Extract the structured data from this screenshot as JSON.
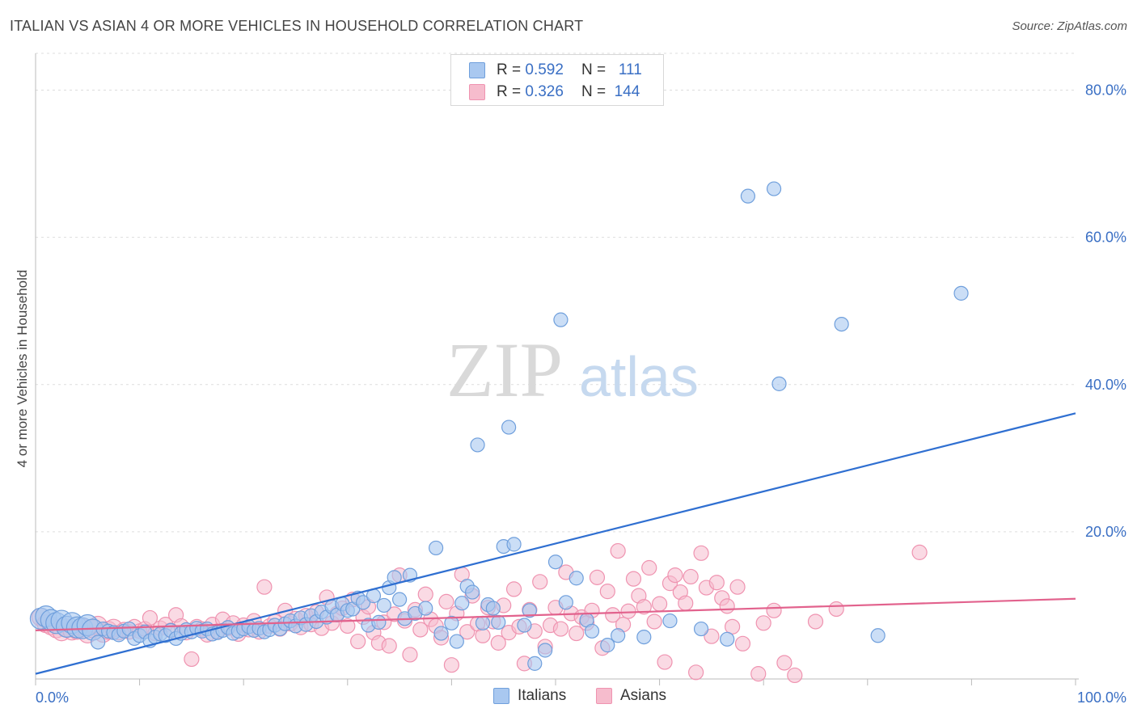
{
  "title": "ITALIAN VS ASIAN 4 OR MORE VEHICLES IN HOUSEHOLD CORRELATION CHART",
  "source": "Source: ZipAtlas.com",
  "watermark": {
    "zip": "ZIP",
    "atlas": "atlas"
  },
  "legend": {
    "italians": {
      "r_label": "R =",
      "r_value": "0.592",
      "n_label": "N =",
      "n_value": "111"
    },
    "asians": {
      "r_label": "R =",
      "r_value": "0.326",
      "n_label": "N =",
      "n_value": "144"
    }
  },
  "colors": {
    "italians_fill": "#a9c8f0",
    "italians_stroke": "#6f9fdc",
    "italians_line": "#2f6fd1",
    "asians_fill": "#f6bccd",
    "asians_stroke": "#ef93b0",
    "asians_line": "#e2628d",
    "tick_label": "#3a6fc4",
    "grid": "#dddddd"
  },
  "chart_data": {
    "type": "scatter",
    "title": "ITALIAN VS ASIAN 4 OR MORE VEHICLES IN HOUSEHOLD CORRELATION CHART",
    "xlabel": "",
    "ylabel": "4 or more Vehicles in Household",
    "xlim": [
      0,
      100
    ],
    "ylim": [
      0,
      85
    ],
    "x_tick_labels": [
      "0.0%",
      "100.0%"
    ],
    "y_ticks": [
      20,
      40,
      60,
      80
    ],
    "y_tick_labels": [
      "20.0%",
      "40.0%",
      "60.0%",
      "80.0%"
    ],
    "grid": true,
    "legend_position": "top-center",
    "series": [
      {
        "name": "Italians",
        "trend": {
          "x": [
            0,
            100
          ],
          "y": [
            0.7,
            36.1
          ]
        },
        "points": [
          [
            0.5,
            8.2
          ],
          [
            1,
            8.5
          ],
          [
            1.5,
            8
          ],
          [
            2,
            7.6
          ],
          [
            2.5,
            7.9
          ],
          [
            3,
            7.1
          ],
          [
            3.5,
            7.6
          ],
          [
            4,
            7
          ],
          [
            4.5,
            6.9
          ],
          [
            5,
            7.3
          ],
          [
            5.5,
            6.7
          ],
          [
            6,
            5
          ],
          [
            6.5,
            6.8
          ],
          [
            7,
            6.5
          ],
          [
            7.5,
            6.3
          ],
          [
            8,
            6
          ],
          [
            8.5,
            6.5
          ],
          [
            9,
            6.8
          ],
          [
            9.5,
            5.5
          ],
          [
            10,
            5.9
          ],
          [
            10.5,
            6.4
          ],
          [
            11,
            5.2
          ],
          [
            11.5,
            5.7
          ],
          [
            12,
            6.1
          ],
          [
            12.5,
            5.9
          ],
          [
            13,
            6.6
          ],
          [
            13.5,
            5.5
          ],
          [
            14,
            6.2
          ],
          [
            14.5,
            6.7
          ],
          [
            15,
            6.4
          ],
          [
            15.5,
            6.9
          ],
          [
            16,
            6.5
          ],
          [
            16.5,
            6.8
          ],
          [
            17,
            6.1
          ],
          [
            17.5,
            6.3
          ],
          [
            18,
            6.6
          ],
          [
            18.5,
            7
          ],
          [
            19,
            6.2
          ],
          [
            19.5,
            6.5
          ],
          [
            20,
            6.8
          ],
          [
            20.5,
            7.1
          ],
          [
            21,
            6.6
          ],
          [
            21.5,
            6.9
          ],
          [
            22,
            6.4
          ],
          [
            22.5,
            6.7
          ],
          [
            23,
            7.3
          ],
          [
            23.5,
            6.8
          ],
          [
            24,
            7.5
          ],
          [
            24.5,
            7.9
          ],
          [
            25,
            7.2
          ],
          [
            25.5,
            8.3
          ],
          [
            26,
            7.4
          ],
          [
            26.5,
            8.6
          ],
          [
            27,
            7.8
          ],
          [
            27.5,
            9.1
          ],
          [
            28,
            8.4
          ],
          [
            28.5,
            9.8
          ],
          [
            29,
            8.7
          ],
          [
            29.5,
            10.2
          ],
          [
            30,
            9.3
          ],
          [
            30.5,
            9.5
          ],
          [
            31,
            11
          ],
          [
            31.5,
            10.4
          ],
          [
            32,
            7.3
          ],
          [
            32.5,
            11.3
          ],
          [
            33,
            7.7
          ],
          [
            33.5,
            10
          ],
          [
            34,
            12.4
          ],
          [
            34.5,
            13.8
          ],
          [
            35,
            10.8
          ],
          [
            35.5,
            8.2
          ],
          [
            36,
            14.1
          ],
          [
            36.5,
            8.9
          ],
          [
            37.5,
            9.6
          ],
          [
            38.5,
            17.8
          ],
          [
            39,
            6.2
          ],
          [
            40,
            7.6
          ],
          [
            40.5,
            5.1
          ],
          [
            41,
            10.3
          ],
          [
            42.5,
            31.8
          ],
          [
            41.5,
            12.6
          ],
          [
            42,
            11.8
          ],
          [
            43,
            7.6
          ],
          [
            43.5,
            10.1
          ],
          [
            44,
            9.6
          ],
          [
            44.5,
            7.7
          ],
          [
            45,
            18
          ],
          [
            45.5,
            34.2
          ],
          [
            46,
            18.3
          ],
          [
            47,
            7.3
          ],
          [
            47.5,
            9.3
          ],
          [
            48,
            2.1
          ],
          [
            49,
            3.9
          ],
          [
            50,
            15.9
          ],
          [
            50.5,
            48.8
          ],
          [
            51,
            10.4
          ],
          [
            52,
            13.7
          ],
          [
            53,
            8
          ],
          [
            53.5,
            6.5
          ],
          [
            55,
            4.6
          ],
          [
            56,
            5.9
          ],
          [
            68.5,
            65.6
          ],
          [
            71,
            66.6
          ],
          [
            71.5,
            40.1
          ],
          [
            77.5,
            48.2
          ],
          [
            81,
            5.9
          ],
          [
            89,
            52.4
          ],
          [
            58.5,
            5.7
          ],
          [
            61,
            7.9
          ],
          [
            64,
            6.8
          ],
          [
            66.5,
            5.4
          ]
        ]
      },
      {
        "name": "Asians",
        "trend": {
          "x": [
            0,
            100
          ],
          "y": [
            6.6,
            10.9
          ]
        },
        "points": [
          [
            0.5,
            8.4
          ],
          [
            1,
            7.5
          ],
          [
            1.5,
            7.2
          ],
          [
            2,
            6.8
          ],
          [
            2.5,
            6.4
          ],
          [
            3,
            6.9
          ],
          [
            3.5,
            6.5
          ],
          [
            4,
            6.6
          ],
          [
            4.5,
            7
          ],
          [
            5,
            6.1
          ],
          [
            5.5,
            6.8
          ],
          [
            6,
            7.3
          ],
          [
            6.5,
            6.2
          ],
          [
            7,
            6.6
          ],
          [
            7.5,
            6.9
          ],
          [
            8,
            6.3
          ],
          [
            8.5,
            6.7
          ],
          [
            9,
            6.4
          ],
          [
            9.5,
            7.1
          ],
          [
            10,
            6.5
          ],
          [
            10.5,
            6.8
          ],
          [
            11,
            8.3
          ],
          [
            11.5,
            6.2
          ],
          [
            12,
            6.9
          ],
          [
            12.5,
            7.4
          ],
          [
            13,
            6.6
          ],
          [
            13.5,
            8.7
          ],
          [
            14,
            7.2
          ],
          [
            14.5,
            6.3
          ],
          [
            15,
            2.7
          ],
          [
            15.5,
            7.1
          ],
          [
            16,
            6.8
          ],
          [
            16.5,
            6
          ],
          [
            17,
            7.4
          ],
          [
            17.5,
            6.5
          ],
          [
            18,
            8.1
          ],
          [
            18.5,
            6.9
          ],
          [
            19,
            7.6
          ],
          [
            19.5,
            6.1
          ],
          [
            20,
            7.3
          ],
          [
            20.5,
            6.7
          ],
          [
            21,
            7.9
          ],
          [
            21.5,
            6.4
          ],
          [
            22,
            12.5
          ],
          [
            22.5,
            7.2
          ],
          [
            23,
            7.8
          ],
          [
            23.5,
            6.8
          ],
          [
            24,
            9.3
          ],
          [
            24.5,
            7.5
          ],
          [
            25,
            8.2
          ],
          [
            25.5,
            7
          ],
          [
            26,
            8.6
          ],
          [
            26.5,
            7.4
          ],
          [
            27,
            9.1
          ],
          [
            27.5,
            6.9
          ],
          [
            28,
            11.1
          ],
          [
            28.5,
            7.6
          ],
          [
            29,
            8.9
          ],
          [
            29.5,
            9.6
          ],
          [
            30,
            7.2
          ],
          [
            30.5,
            10.8
          ],
          [
            31,
            5.1
          ],
          [
            31.5,
            8.4
          ],
          [
            32,
            9.8
          ],
          [
            32.5,
            6.3
          ],
          [
            33,
            4.9
          ],
          [
            33.5,
            7.7
          ],
          [
            34,
            4.5
          ],
          [
            34.5,
            8.8
          ],
          [
            35,
            14.1
          ],
          [
            35.5,
            7.9
          ],
          [
            36,
            3.3
          ],
          [
            36.5,
            9.4
          ],
          [
            37,
            6.7
          ],
          [
            37.5,
            11.5
          ],
          [
            38,
            8.1
          ],
          [
            38.5,
            7.2
          ],
          [
            39,
            5.6
          ],
          [
            39.5,
            10.5
          ],
          [
            40,
            1.9
          ],
          [
            40.5,
            8.9
          ],
          [
            41,
            14.2
          ],
          [
            41.5,
            6.4
          ],
          [
            42,
            11.3
          ],
          [
            42.5,
            7.5
          ],
          [
            43,
            5.9
          ],
          [
            43.5,
            9.7
          ],
          [
            44,
            7.8
          ],
          [
            44.5,
            4.9
          ],
          [
            45,
            10
          ],
          [
            45.5,
            6.3
          ],
          [
            46,
            12.2
          ],
          [
            46.5,
            7.1
          ],
          [
            47,
            2.1
          ],
          [
            47.5,
            9.4
          ],
          [
            48,
            6.5
          ],
          [
            48.5,
            13.2
          ],
          [
            49,
            4.4
          ],
          [
            49.5,
            7.3
          ],
          [
            50,
            9.7
          ],
          [
            50.5,
            6.8
          ],
          [
            51,
            14.5
          ],
          [
            51.5,
            8.9
          ],
          [
            52,
            6.2
          ],
          [
            52.5,
            8.4
          ],
          [
            53,
            7.6
          ],
          [
            53.5,
            9.3
          ],
          [
            54,
            13.8
          ],
          [
            54.5,
            4.2
          ],
          [
            55,
            11.9
          ],
          [
            55.5,
            8.7
          ],
          [
            56,
            17.4
          ],
          [
            56.5,
            7.4
          ],
          [
            57,
            9.2
          ],
          [
            57.5,
            13.6
          ],
          [
            58,
            11.3
          ],
          [
            58.5,
            9.8
          ],
          [
            59,
            15.1
          ],
          [
            59.5,
            7.8
          ],
          [
            60,
            10.2
          ],
          [
            60.5,
            2.3
          ],
          [
            61,
            13
          ],
          [
            61.5,
            14.1
          ],
          [
            62,
            11.8
          ],
          [
            62.5,
            10.3
          ],
          [
            63,
            13.9
          ],
          [
            63.5,
            0.9
          ],
          [
            64,
            17.1
          ],
          [
            64.5,
            12.4
          ],
          [
            65,
            5.8
          ],
          [
            65.5,
            13.1
          ],
          [
            66,
            11
          ],
          [
            66.5,
            9.9
          ],
          [
            67,
            7.1
          ],
          [
            67.5,
            12.5
          ],
          [
            68,
            4.8
          ],
          [
            69.5,
            0.7
          ],
          [
            70,
            7.6
          ],
          [
            71,
            9.3
          ],
          [
            72,
            2.2
          ],
          [
            73,
            0.5
          ],
          [
            75,
            7.8
          ],
          [
            77,
            9.5
          ],
          [
            85,
            17.2
          ]
        ]
      }
    ]
  }
}
